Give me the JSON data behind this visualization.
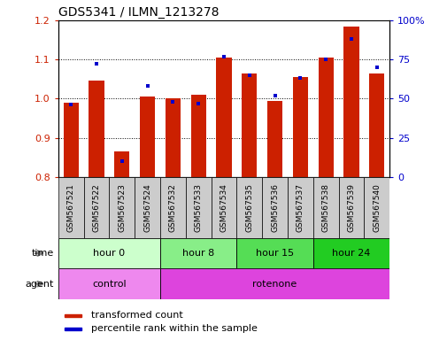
{
  "title": "GDS5341 / ILMN_1213278",
  "samples": [
    "GSM567521",
    "GSM567522",
    "GSM567523",
    "GSM567524",
    "GSM567532",
    "GSM567533",
    "GSM567534",
    "GSM567535",
    "GSM567536",
    "GSM567537",
    "GSM567538",
    "GSM567539",
    "GSM567540"
  ],
  "transformed_counts": [
    0.99,
    1.045,
    0.865,
    1.005,
    1.0,
    1.01,
    1.105,
    1.065,
    0.995,
    1.055,
    1.105,
    1.185,
    1.065
  ],
  "percentile_ranks": [
    46,
    72,
    10,
    58,
    48,
    47,
    77,
    65,
    52,
    63,
    75,
    88,
    70
  ],
  "ylim_left": [
    0.8,
    1.2
  ],
  "ylim_right": [
    0,
    100
  ],
  "yticks_left": [
    0.8,
    0.9,
    1.0,
    1.1,
    1.2
  ],
  "yticks_right": [
    0,
    25,
    50,
    75,
    100
  ],
  "ytick_right_labels": [
    "0",
    "25",
    "50",
    "75",
    "100%"
  ],
  "bar_color": "#cc2000",
  "marker_color": "#0000cc",
  "time_groups": [
    {
      "label": "hour 0",
      "start": 0,
      "end": 4,
      "color": "#ccffcc"
    },
    {
      "label": "hour 8",
      "start": 4,
      "end": 7,
      "color": "#88ee88"
    },
    {
      "label": "hour 15",
      "start": 7,
      "end": 10,
      "color": "#55dd55"
    },
    {
      "label": "hour 24",
      "start": 10,
      "end": 13,
      "color": "#22cc22"
    }
  ],
  "agent_groups": [
    {
      "label": "control",
      "start": 0,
      "end": 4,
      "color": "#ee88ee"
    },
    {
      "label": "rotenone",
      "start": 4,
      "end": 13,
      "color": "#dd44dd"
    }
  ],
  "legend_red": "transformed count",
  "legend_blue": "percentile rank within the sample",
  "xlim": [
    -0.5,
    12.5
  ],
  "bar_width": 0.6,
  "tick_bg_color": "#cccccc",
  "spine_color": "#000000"
}
